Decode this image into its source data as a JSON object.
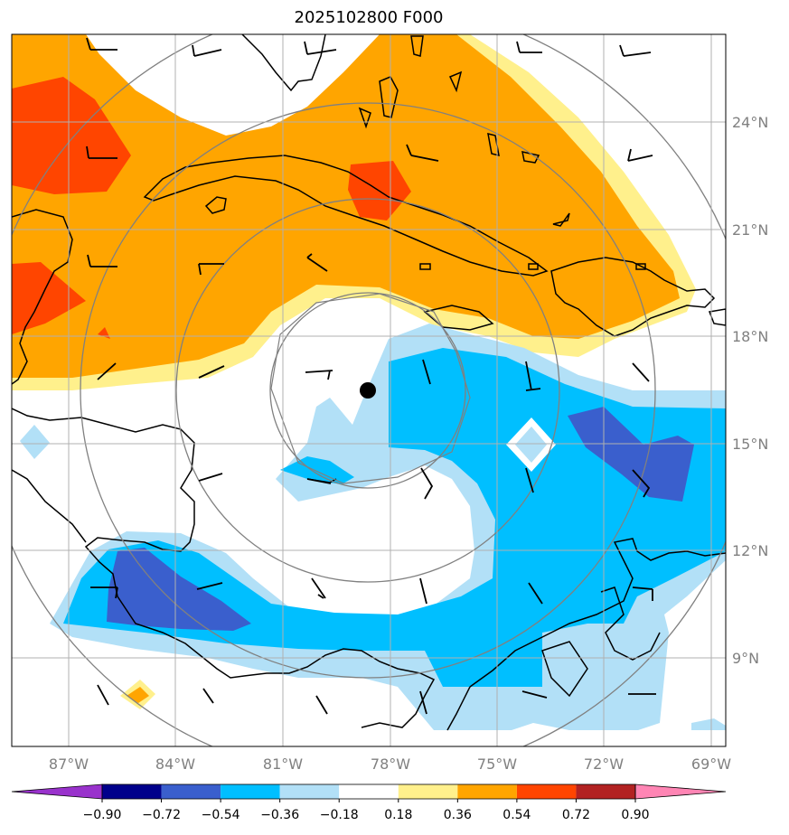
{
  "title": "2025102800 F000",
  "lat_labels": [
    "24°N",
    "21°N",
    "18°N",
    "15°N",
    "12°N",
    "9°N"
  ],
  "lon_labels": [
    "87°W",
    "84°W",
    "81°W",
    "78°W",
    "75°W",
    "72°W",
    "69°W"
  ],
  "colorbar": {
    "ticks": [
      "−0.90",
      "−0.72",
      "−0.54",
      "−0.36",
      "−0.18",
      "0.18",
      "0.36",
      "0.54",
      "0.72",
      "0.90"
    ],
    "colors": [
      "#9932cc",
      "#00008b",
      "#3a5fcd",
      "#00bfff",
      "#b2e0f7",
      "#ffffff",
      "#fff08c",
      "#ffa500",
      "#ff4500",
      "#b22222",
      "#ff85b4"
    ]
  },
  "colors": {
    "grid": "#b0b0b0",
    "range_rings": "#808080",
    "coast": "#000000",
    "center_marker": "#000000"
  },
  "center_marker": {
    "lat": 16.5,
    "lon": -78.7
  }
}
